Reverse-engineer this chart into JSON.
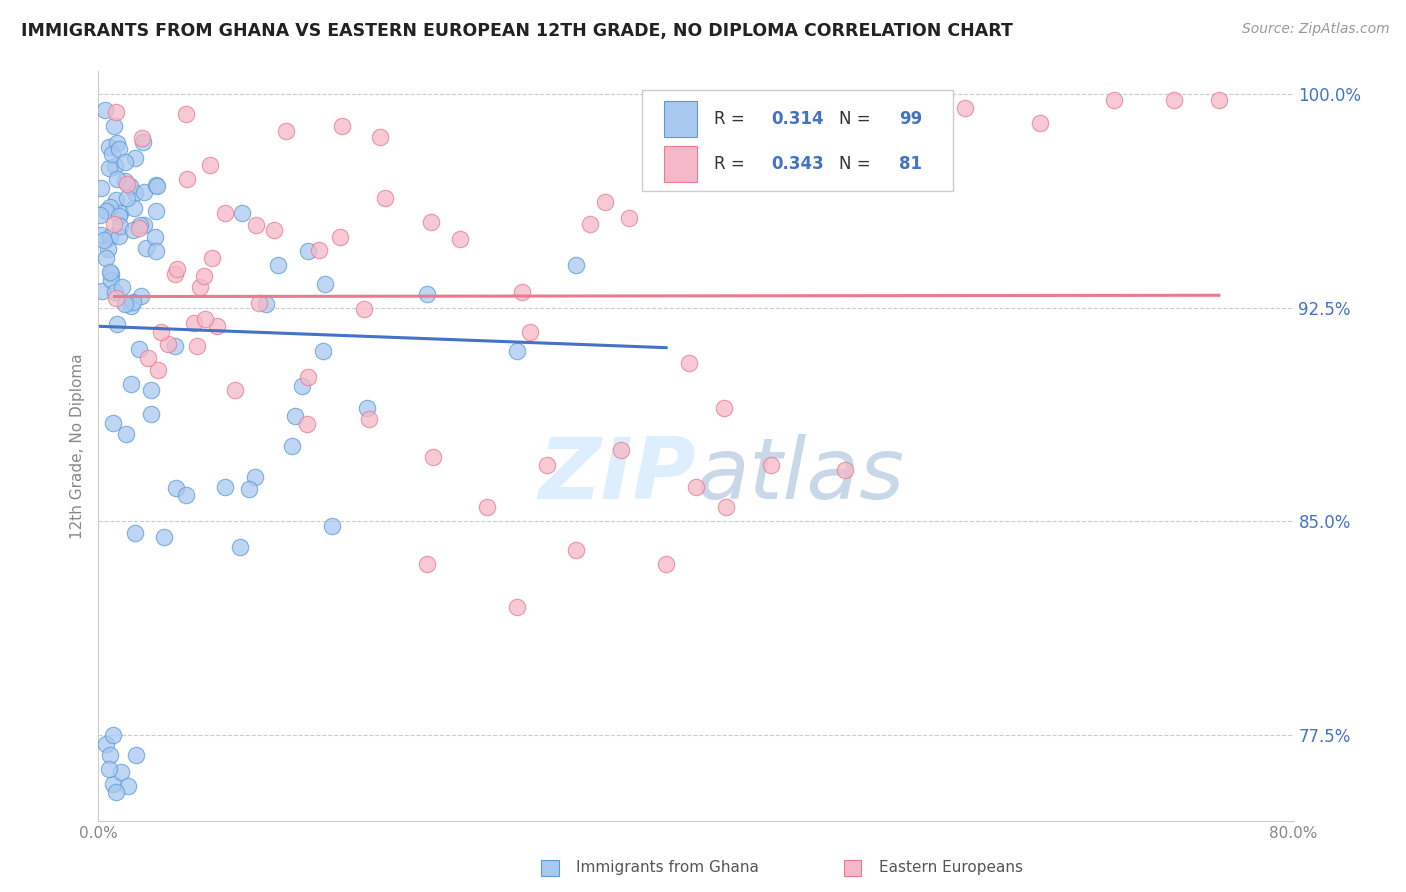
{
  "title": "IMMIGRANTS FROM GHANA VS EASTERN EUROPEAN 12TH GRADE, NO DIPLOMA CORRELATION CHART",
  "source": "Source: ZipAtlas.com",
  "ylabel": "12th Grade, No Diploma",
  "ghana_R": "0.314",
  "ghana_N": "99",
  "eastern_R": "0.343",
  "eastern_N": "81",
  "xlim_min": 0.0,
  "xlim_max": 0.8,
  "ylim_min": 0.745,
  "ylim_max": 1.008,
  "ytick_vals": [
    0.775,
    0.85,
    0.925,
    1.0
  ],
  "ytick_labels": [
    "77.5%",
    "85.0%",
    "92.5%",
    "100.0%"
  ],
  "xtick_vals": [
    0.0,
    0.1,
    0.2,
    0.3,
    0.4,
    0.5,
    0.6,
    0.7,
    0.8
  ],
  "xtick_labels": [
    "0.0%",
    "",
    "",
    "",
    "",
    "",
    "",
    "",
    "80.0%"
  ],
  "color_ghana": "#a8c8f0",
  "color_ghana_edge": "#5b9bd5",
  "color_eastern": "#f5b8c8",
  "color_eastern_edge": "#e87a91",
  "color_ghana_line": "#4472c4",
  "color_eastern_line": "#e87a91",
  "watermark_color": "#ddeeff",
  "tick_label_color": "#4472c4",
  "axis_label_color": "#888888",
  "grid_color": "#cccccc",
  "title_color": "#222222",
  "source_color": "#999999"
}
